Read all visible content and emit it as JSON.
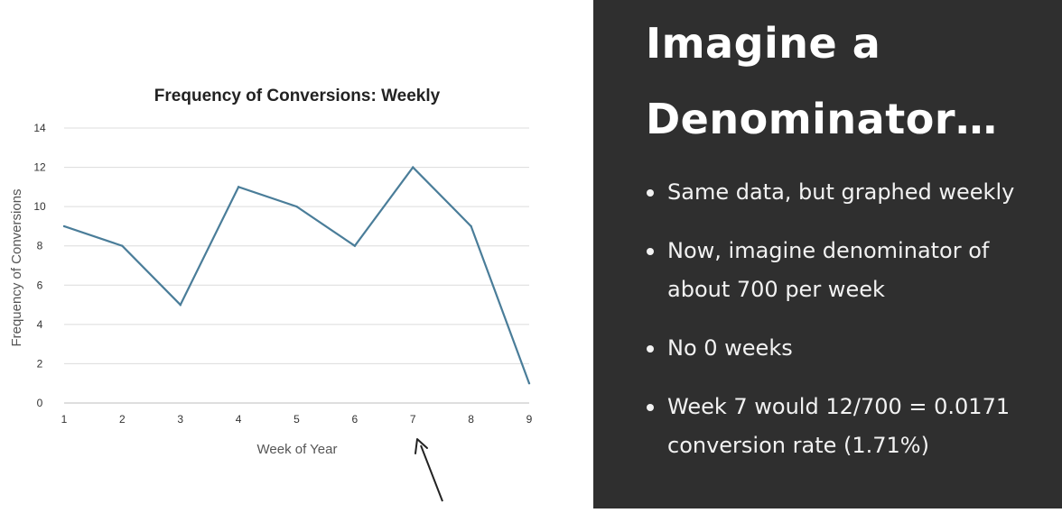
{
  "slide": {
    "title_line1": "Imagine a",
    "title_line2": "Denominator…",
    "bullets": [
      "Same data, but graphed weekly",
      "Now, imagine denominator of about 700 per week",
      "No 0 weeks",
      "Week 7 would 12/700 = 0.0171 conversion rate (1.71%)"
    ]
  },
  "colors": {
    "line": "#4a7d99",
    "grid": "#dcdcdc",
    "dark_panel": "#2f2f2f",
    "arrow": "#222222"
  },
  "chart_data": {
    "type": "line",
    "title": "Frequency of Conversions: Weekly",
    "xlabel": "Week of Year",
    "ylabel": "Frequency of Conversions",
    "x": [
      1,
      2,
      3,
      4,
      5,
      6,
      7,
      8,
      9
    ],
    "values": [
      9,
      8,
      5,
      11,
      10,
      8,
      12,
      9,
      1
    ],
    "ylim": [
      0,
      14
    ],
    "yticks": [
      0,
      2,
      4,
      6,
      8,
      10,
      12,
      14
    ],
    "grid": true,
    "legend": "none",
    "annotation": "arrow pointing to week 7"
  }
}
